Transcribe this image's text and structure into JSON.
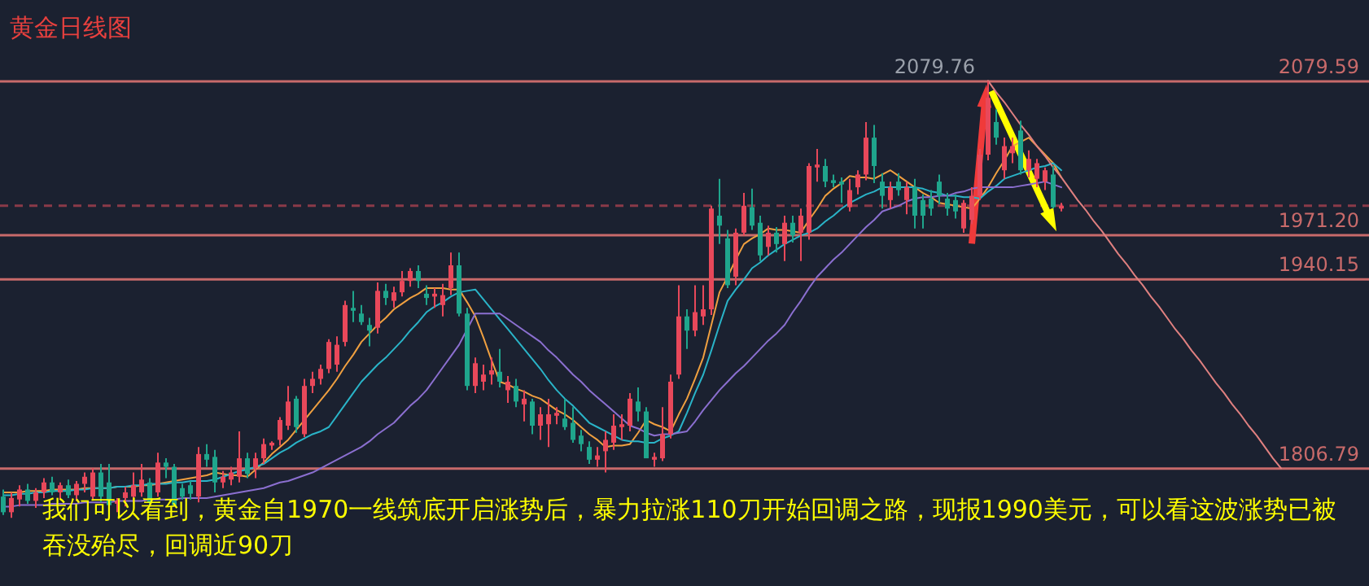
{
  "chart_data": {
    "type": "candlestick",
    "title": "黄金日线图",
    "annotations": [
      {
        "text": "2079.76",
        "y": 2079.76
      },
      "我们可以看到，黄金自1970一线筑底开启涨势后，暴力拉涨110刀开始回调之路，现报1990美元，可以看这波涨势已被吞没殆尽，回调近90刀"
    ],
    "ylim": [
      1724,
      2137
    ],
    "categories": [
      null,
      null,
      null,
      null,
      null,
      null,
      null,
      null,
      null,
      null,
      null,
      null,
      null,
      null,
      null,
      null,
      null,
      null,
      null,
      null,
      null,
      null,
      null,
      null,
      null,
      null,
      null,
      null,
      null,
      null,
      null,
      null,
      null,
      null,
      null,
      null,
      null,
      null,
      null,
      null,
      null,
      null,
      null,
      null,
      null,
      null,
      null,
      null,
      null,
      null,
      null,
      null,
      null,
      null,
      null,
      null,
      null,
      null,
      null,
      null,
      null,
      null,
      null,
      null,
      null,
      null,
      null,
      null,
      null,
      null,
      null,
      null,
      null,
      null,
      null,
      null,
      null,
      null,
      null,
      null,
      null,
      null,
      null,
      null,
      null,
      null,
      null,
      null,
      null,
      null,
      null,
      null,
      null,
      null,
      null,
      null,
      null,
      null,
      null,
      null,
      null,
      null,
      null,
      null,
      null,
      null,
      null,
      null,
      null,
      null,
      null,
      null,
      null,
      null,
      null,
      null,
      null,
      null,
      null,
      null,
      null,
      null,
      null,
      null,
      null,
      null,
      null,
      null,
      null,
      null,
      null,
      null,
      null,
      null,
      null,
      null,
      null,
      null,
      null,
      null,
      null,
      null,
      null,
      null,
      null,
      null,
      null,
      null,
      null,
      null,
      null,
      null,
      null,
      null,
      null,
      null,
      null,
      null
    ],
    "ohlc": [
      [
        1787,
        1792,
        1774,
        1776
      ],
      [
        1776,
        1790,
        1772,
        1786
      ],
      [
        1785,
        1795,
        1780,
        1792
      ],
      [
        1792,
        1796,
        1782,
        1784
      ],
      [
        1784,
        1793,
        1779,
        1790
      ],
      [
        1790,
        1800,
        1786,
        1797
      ],
      [
        1797,
        1801,
        1788,
        1790
      ],
      [
        1790,
        1797,
        1785,
        1795
      ],
      [
        1795,
        1799,
        1786,
        1788
      ],
      [
        1788,
        1798,
        1784,
        1796
      ],
      [
        1796,
        1804,
        1790,
        1801
      ],
      [
        1787,
        1807,
        1785,
        1804
      ],
      [
        1804,
        1810,
        1783,
        1787
      ],
      [
        1797,
        1810,
        1779,
        1781
      ],
      [
        1782,
        1786,
        1776,
        1784
      ],
      [
        1786,
        1794,
        1780,
        1790
      ],
      [
        1787,
        1804,
        1783,
        1795
      ],
      [
        1790,
        1810,
        1787,
        1799
      ],
      [
        1797,
        1800,
        1780,
        1783
      ],
      [
        1790,
        1818,
        1787,
        1811
      ],
      [
        1811,
        1814,
        1800,
        1808
      ],
      [
        1808,
        1810,
        1780,
        1781
      ],
      [
        1793,
        1796,
        1785,
        1787
      ],
      [
        1795,
        1798,
        1785,
        1789
      ],
      [
        1787,
        1822,
        1783,
        1817
      ],
      [
        1817,
        1824,
        1808,
        1813
      ],
      [
        1815,
        1820,
        1790,
        1797
      ],
      [
        1797,
        1805,
        1793,
        1801
      ],
      [
        1799,
        1808,
        1795,
        1804
      ],
      [
        1801,
        1833,
        1797,
        1814
      ],
      [
        1814,
        1818,
        1800,
        1803
      ],
      [
        1807,
        1818,
        1800,
        1814
      ],
      [
        1814,
        1828,
        1810,
        1824
      ],
      [
        1823,
        1826,
        1820,
        1825
      ],
      [
        1827,
        1843,
        1823,
        1841
      ],
      [
        1837,
        1865,
        1834,
        1854
      ],
      [
        1856,
        1858,
        1832,
        1836
      ],
      [
        1831,
        1870,
        1829,
        1865
      ],
      [
        1865,
        1875,
        1860,
        1870
      ],
      [
        1870,
        1880,
        1866,
        1877
      ],
      [
        1877,
        1898,
        1874,
        1896
      ],
      [
        1880,
        1900,
        1875,
        1894
      ],
      [
        1896,
        1925,
        1893,
        1922
      ],
      [
        1920,
        1932,
        1910,
        1918
      ],
      [
        1916,
        1922,
        1908,
        1910
      ],
      [
        1908,
        1913,
        1893,
        1904
      ],
      [
        1906,
        1938,
        1902,
        1932
      ],
      [
        1932,
        1937,
        1922,
        1927
      ],
      [
        1925,
        1935,
        1920,
        1931
      ],
      [
        1931,
        1946,
        1928,
        1939
      ],
      [
        1939,
        1948,
        1935,
        1946
      ],
      [
        1946,
        1950,
        1934,
        1939
      ],
      [
        1930,
        1936,
        1922,
        1927
      ],
      [
        1928,
        1934,
        1920,
        1930
      ],
      [
        1922,
        1937,
        1914,
        1929
      ],
      [
        1934,
        1959,
        1929,
        1950
      ],
      [
        1950,
        1959,
        1914,
        1916
      ],
      [
        1916,
        1920,
        1862,
        1865
      ],
      [
        1865,
        1885,
        1860,
        1881
      ],
      [
        1868,
        1880,
        1862,
        1873
      ],
      [
        1873,
        1885,
        1866,
        1876
      ],
      [
        1875,
        1891,
        1864,
        1868
      ],
      [
        1862,
        1872,
        1853,
        1868
      ],
      [
        1865,
        1870,
        1850,
        1854
      ],
      [
        1852,
        1862,
        1840,
        1856
      ],
      [
        1854,
        1856,
        1831,
        1837
      ],
      [
        1837,
        1850,
        1827,
        1845
      ],
      [
        1838,
        1856,
        1822,
        1845
      ],
      [
        1844,
        1850,
        1838,
        1846
      ],
      [
        1842,
        1856,
        1834,
        1836
      ],
      [
        1839,
        1850,
        1825,
        1827
      ],
      [
        1830,
        1834,
        1819,
        1824
      ],
      [
        1822,
        1826,
        1810,
        1813
      ],
      [
        1813,
        1822,
        1808,
        1816
      ],
      [
        1819,
        1833,
        1804,
        1827
      ],
      [
        1825,
        1845,
        1820,
        1837
      ],
      [
        1836,
        1845,
        1827,
        1838
      ],
      [
        1837,
        1860,
        1833,
        1856
      ],
      [
        1854,
        1864,
        1840,
        1847
      ],
      [
        1847,
        1850,
        1814,
        1814
      ],
      [
        1813,
        1818,
        1808,
        1815
      ],
      [
        1814,
        1850,
        1812,
        1831
      ],
      [
        1831,
        1873,
        1828,
        1868
      ],
      [
        1873,
        1936,
        1870,
        1914
      ],
      [
        1914,
        1919,
        1891,
        1904
      ],
      [
        1904,
        1936,
        1900,
        1917
      ],
      [
        1914,
        1936,
        1908,
        1919
      ],
      [
        1919,
        1992,
        1915,
        1990
      ],
      [
        1985,
        2011,
        1965,
        1978
      ],
      [
        1969,
        1975,
        1934,
        1936
      ],
      [
        1942,
        1976,
        1936,
        1973
      ],
      [
        1973,
        2001,
        1971,
        1992
      ],
      [
        1991,
        2004,
        1975,
        1978
      ],
      [
        1980,
        1985,
        1953,
        1957
      ],
      [
        1963,
        1978,
        1957,
        1973
      ],
      [
        1973,
        1977,
        1959,
        1965
      ],
      [
        1965,
        1985,
        1953,
        1980
      ],
      [
        1980,
        1985,
        1966,
        1971
      ],
      [
        1973,
        1990,
        1953,
        1985
      ],
      [
        1973,
        2022,
        1968,
        2020
      ],
      [
        2019,
        2032,
        2009,
        2021
      ],
      [
        2020,
        2025,
        2005,
        2009
      ],
      [
        2010,
        2014,
        2005,
        2008
      ],
      [
        2009,
        2012,
        1994,
        2007
      ],
      [
        1991,
        2011,
        1988,
        2003
      ],
      [
        2005,
        2017,
        2000,
        2014
      ],
      [
        2014,
        2051,
        2010,
        2040
      ],
      [
        2040,
        2049,
        2008,
        2020
      ],
      [
        2009,
        2015,
        1990,
        1999
      ],
      [
        1996,
        2009,
        1990,
        2005
      ],
      [
        2009,
        2015,
        1999,
        2003
      ],
      [
        1996,
        2009,
        1986,
        2005
      ],
      [
        2005,
        2011,
        1976,
        1985
      ],
      [
        1996,
        2000,
        1976,
        1985
      ],
      [
        1997,
        2003,
        1985,
        1990
      ],
      [
        2009,
        2014,
        1993,
        1999
      ],
      [
        1997,
        2001,
        1985,
        1990
      ],
      [
        1996,
        2000,
        1983,
        1988
      ],
      [
        1976,
        1996,
        1973,
        1994
      ],
      [
        1982,
        2005,
        1979,
        1999
      ],
      [
        1999,
        2032,
        1996,
        2028
      ],
      [
        2028,
        2079.76,
        2024,
        2068
      ],
      [
        2051,
        2060,
        2035,
        2040
      ],
      [
        2017,
        2040,
        2011,
        2034
      ],
      [
        2029,
        2040,
        2022,
        2034
      ],
      [
        2045,
        2052,
        2014,
        2017
      ],
      [
        2017,
        2031,
        2012,
        2025
      ],
      [
        2011,
        2025,
        2005,
        2022
      ],
      [
        2009,
        2019,
        2003,
        2017
      ],
      [
        2014,
        2020,
        1990,
        1991
      ],
      [
        1990,
        1994,
        1988,
        1992
      ],
      null,
      null,
      null,
      null,
      null,
      null,
      null,
      null,
      null,
      null,
      null,
      null,
      null,
      null,
      null,
      null,
      null,
      null,
      null,
      null,
      null,
      null,
      null,
      null,
      null,
      null,
      null
    ],
    "series": [
      {
        "type": "line",
        "color": "#f0a040",
        "values": [
          1790,
          1790,
          1790,
          1791,
          1791,
          1791,
          1792,
          1792,
          1792,
          1792,
          1793,
          1793,
          1793,
          1793,
          1794,
          1794,
          1794,
          1795,
          1795,
          1796,
          1797,
          1798,
          1799,
          1800,
          1801,
          1802,
          1804,
          1803,
          1802,
          1802,
          1801,
          1806,
          1811,
          1817,
          1822,
          1827,
          1834,
          1841,
          1848,
          1855,
          1862,
          1870,
          1879,
          1887,
          1896,
          1902,
          1908,
          1913,
          1919,
          1923,
          1927,
          1930,
          1934,
          1934,
          1934,
          1933,
          1933,
          1924,
          1914,
          1899,
          1883,
          1868,
          1866,
          1863,
          1861,
          1858,
          1856,
          1852,
          1848,
          1845,
          1841,
          1836,
          1831,
          1827,
          1822,
          1823,
          1823,
          1824,
          1832,
          1841,
          1838,
          1836,
          1833,
          1845,
          1856,
          1870,
          1885,
          1908,
          1931,
          1942,
          1954,
          1965,
          1969,
          1972,
          1976,
          1975,
          1975,
          1974,
          1973,
          1982,
          1990,
          1999,
          2004,
          2008,
          2013,
          2012,
          2012,
          2011,
          2014,
          2017,
          2013,
          2009,
          2005,
          2001,
          1998,
          1994,
          1993,
          1992,
          1991,
          1990,
          1997,
          2005,
          2015,
          2024,
          2034,
          2037,
          2040,
          2034,
          2028,
          2022,
          2012,
          null,
          null,
          null,
          null,
          null,
          null,
          null,
          null,
          null,
          null,
          null,
          null,
          null,
          null,
          null,
          null,
          null,
          null,
          null,
          null,
          null,
          null,
          null,
          null,
          null,
          null,
          null
        ]
      },
      {
        "type": "line",
        "color": "#2ab4c8",
        "values": [
          1788,
          1788,
          1789,
          1789,
          1790,
          1790,
          1791,
          1791,
          1791,
          1792,
          1792,
          1793,
          1793,
          1793,
          1794,
          1794,
          1795,
          1795,
          1796,
          1796,
          1796,
          1797,
          1797,
          1798,
          1798,
          1798,
          1799,
          1801,
          1803,
          1805,
          1806,
          1808,
          1810,
          1814,
          1818,
          1821,
          1825,
          1828,
          1831,
          1833,
          1836,
          1844,
          1852,
          1860,
          1868,
          1874,
          1880,
          1885,
          1891,
          1897,
          1904,
          1910,
          1917,
          1921,
          1924,
          1928,
          1931,
          1932,
          1933,
          1926,
          1919,
          1912,
          1905,
          1898,
          1891,
          1884,
          1877,
          1869,
          1862,
          1856,
          1851,
          1845,
          1839,
          1836,
          1833,
          1830,
          1827,
          1826,
          1826,
          1825,
          1825,
          1828,
          1830,
          1833,
          1846,
          1860,
          1873,
          1890,
          1908,
          1925,
          1933,
          1940,
          1948,
          1952,
          1957,
          1961,
          1965,
          1968,
          1971,
          1973,
          1976,
          1981,
          1985,
          1990,
          1994,
          1997,
          2000,
          2002,
          2005,
          2005,
          2005,
          2005,
          2005,
          2004,
          2002,
          2001,
          1999,
          1999,
          1998,
          1998,
          1997,
          2002,
          2006,
          2011,
          2013,
          2015,
          2017,
          2019,
          2020,
          2022,
          2017,
          null,
          null,
          null,
          null,
          null,
          null,
          null,
          null,
          null,
          null,
          null,
          null,
          null,
          null,
          null,
          null,
          null,
          null,
          null,
          null,
          null,
          null,
          null,
          null,
          null,
          null,
          null
        ]
      },
      {
        "type": "line",
        "color": "#8b6fd0",
        "values": [
          1780,
          1780,
          1781,
          1781,
          1781,
          1781,
          1782,
          1782,
          1782,
          1782,
          1783,
          1783,
          1783,
          1783,
          1784,
          1784,
          1784,
          1784,
          1785,
          1785,
          1785,
          1785,
          1786,
          1786,
          1786,
          1786,
          1787,
          1788,
          1789,
          1790,
          1791,
          1792,
          1793,
          1795,
          1797,
          1798,
          1800,
          1802,
          1804,
          1807,
          1810,
          1813,
          1816,
          1819,
          1822,
          1826,
          1831,
          1835,
          1839,
          1845,
          1851,
          1856,
          1862,
          1870,
          1878,
          1886,
          1894,
          1905,
          1916,
          1916,
          1916,
          1916,
          1912,
          1908,
          1904,
          1900,
          1896,
          1890,
          1885,
          1879,
          1873,
          1868,
          1862,
          1857,
          1852,
          1847,
          1842,
          1837,
          1835,
          1832,
          1830,
          1831,
          1831,
          1832,
          1833,
          1840,
          1848,
          1855,
          1862,
          1868,
          1874,
          1879,
          1885,
          1891,
          1897,
          1902,
          1908,
          1917,
          1925,
          1934,
          1942,
          1948,
          1954,
          1959,
          1965,
          1971,
          1977,
          1982,
          1988,
          1990,
          1992,
          1995,
          1997,
          1998,
          1998,
          1999,
          1999,
          2001,
          2002,
          2004,
          2005,
          2005,
          2005,
          2005,
          2005,
          2006,
          2007,
          2008,
          2009,
          2007,
          2005,
          null,
          null,
          null,
          null,
          null,
          null,
          null,
          null,
          null,
          null,
          null,
          null,
          null,
          null,
          null,
          null,
          null,
          null,
          null,
          null,
          null,
          null,
          null,
          null,
          null,
          null,
          null
        ]
      },
      {
        "type": "line",
        "color": "#e08080",
        "values": [
          null,
          null,
          null,
          null,
          null,
          null,
          null,
          null,
          null,
          null,
          null,
          null,
          null,
          null,
          null,
          null,
          null,
          null,
          null,
          null,
          null,
          null,
          null,
          null,
          null,
          null,
          null,
          null,
          null,
          null,
          null,
          null,
          null,
          null,
          null,
          null,
          null,
          null,
          null,
          null,
          null,
          null,
          null,
          null,
          null,
          null,
          null,
          null,
          null,
          null,
          null,
          null,
          null,
          null,
          null,
          null,
          null,
          null,
          null,
          null,
          null,
          null,
          null,
          null,
          null,
          null,
          null,
          null,
          null,
          null,
          null,
          null,
          null,
          null,
          null,
          null,
          null,
          null,
          null,
          null,
          null,
          null,
          null,
          null,
          null,
          null,
          null,
          null,
          null,
          null,
          null,
          null,
          null,
          null,
          null,
          null,
          null,
          null,
          null,
          null,
          null,
          null,
          null,
          null,
          null,
          null,
          null,
          null,
          null,
          null,
          null,
          null,
          null,
          null,
          null,
          null,
          null,
          null,
          null,
          null,
          null,
          2080,
          2072,
          2065,
          2057,
          2049,
          2042,
          2034,
          2027,
          2019,
          2012,
          2004,
          1996,
          1989,
          1981,
          1974,
          1966,
          1958,
          1951,
          1943,
          1936,
          1928,
          1921,
          1913,
          1905,
          1898,
          1890,
          1883,
          1875,
          1867,
          1860,
          1852,
          1845,
          1837,
          1830,
          1822,
          1814,
          1807
        ]
      }
    ],
    "ref_lines": [
      {
        "axis": "y",
        "value": 2079.59,
        "label": "2079.59",
        "color": "#c86a6a"
      },
      {
        "axis": "y",
        "value": 1971.2,
        "label": "1971.20",
        "color": "#c86a6a"
      },
      {
        "axis": "y",
        "value": 1940.15,
        "label": "1940.15",
        "color": "#c86a6a"
      },
      {
        "axis": "y",
        "value": 1806.79,
        "label": "1806.79",
        "color": "#c86a6a"
      },
      {
        "axis": "y",
        "value": 1992,
        "color": "#8a3a48",
        "line_style": "dashed"
      }
    ]
  }
}
